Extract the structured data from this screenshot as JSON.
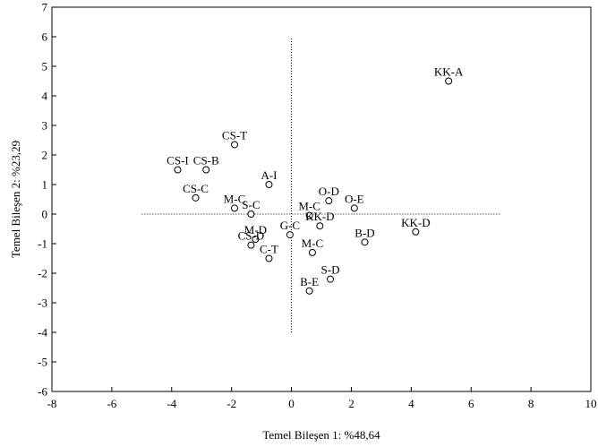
{
  "chart_data": {
    "type": "scatter",
    "xlabel": "Temel Bileşen 1: %48,64",
    "ylabel": "Temel Bileşen 2: %23,29",
    "xlim": [
      -8,
      10
    ],
    "ylim": [
      -6,
      7
    ],
    "xticks": [
      "-8",
      "-6",
      "-4",
      "-2",
      "0",
      "2",
      "4",
      "6",
      "8",
      "10"
    ],
    "yticks": [
      "7",
      "6",
      "5",
      "4",
      "3",
      "2",
      "1",
      "0",
      "-1",
      "-2",
      "-3",
      "-4",
      "-5",
      "-6"
    ],
    "reference_lines": {
      "horizontal": {
        "y": 0,
        "x_from": -5,
        "x_to": 7
      },
      "vertical": {
        "x": 0,
        "y_from": -4,
        "y_to": 6
      }
    },
    "points": [
      {
        "label": "KK-A",
        "x": 5.25,
        "y": 4.5
      },
      {
        "label": "CS-T",
        "x": -1.9,
        "y": 2.35
      },
      {
        "label": "CS-I",
        "x": -3.8,
        "y": 1.5
      },
      {
        "label": "CS-B",
        "x": -2.85,
        "y": 1.5
      },
      {
        "label": "CS-C",
        "x": -3.2,
        "y": 0.55
      },
      {
        "label": "A-I",
        "x": -0.75,
        "y": 1.0
      },
      {
        "label": "M-C",
        "x": -1.9,
        "y": 0.2
      },
      {
        "label": "S-C",
        "x": -1.35,
        "y": 0.0
      },
      {
        "label": "O-D",
        "x": 1.25,
        "y": 0.45
      },
      {
        "label": "O-E",
        "x": 2.1,
        "y": 0.2
      },
      {
        "label": "M-C",
        "x": 0.6,
        "y": -0.05
      },
      {
        "label": "KK-D",
        "x": 0.95,
        "y": -0.4
      },
      {
        "label": "G-C",
        "x": -0.05,
        "y": -0.7
      },
      {
        "label": "KK-D",
        "x": 4.15,
        "y": -0.6
      },
      {
        "label": "B-D",
        "x": 2.45,
        "y": -0.95
      },
      {
        "label": "M-D",
        "x": -1.2,
        "y": -0.85
      },
      {
        "label": "CS-D",
        "x": -1.35,
        "y": -1.05
      },
      {
        "label": "C-T",
        "x": -0.75,
        "y": -1.5
      },
      {
        "label": "M-C",
        "x": 0.7,
        "y": -1.3
      },
      {
        "label": "S-D",
        "x": 1.3,
        "y": -2.2
      },
      {
        "label": "B-E",
        "x": 0.6,
        "y": -2.6
      }
    ]
  }
}
